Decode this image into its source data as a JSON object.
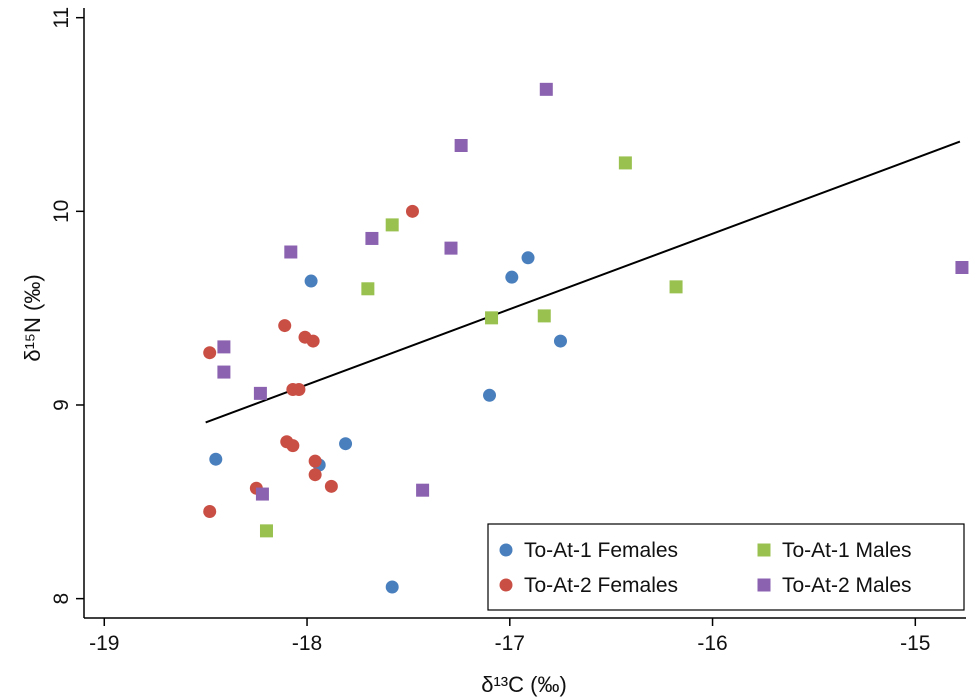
{
  "chart_data": {
    "type": "scatter",
    "title": "",
    "xlabel": "δ¹³C (‰)",
    "ylabel": "δ¹⁵N (‰)",
    "xlim": [
      -19.1,
      -14.75
    ],
    "ylim": [
      7.9,
      11.05
    ],
    "xticks": [
      -19,
      -18,
      -17,
      -16,
      -15
    ],
    "yticks": [
      8,
      9,
      10,
      11
    ],
    "grid": false,
    "legend_position": "bottom-right",
    "series": [
      {
        "name": "To-At-1 Females",
        "marker": "circle",
        "color": "#4a7fbd",
        "points": [
          {
            "x": -18.45,
            "y": 8.72
          },
          {
            "x": -17.98,
            "y": 9.64
          },
          {
            "x": -17.94,
            "y": 8.69
          },
          {
            "x": -17.81,
            "y": 8.8
          },
          {
            "x": -17.58,
            "y": 8.06
          },
          {
            "x": -17.1,
            "y": 9.05
          },
          {
            "x": -16.99,
            "y": 9.66
          },
          {
            "x": -16.91,
            "y": 9.76
          },
          {
            "x": -16.75,
            "y": 9.33
          }
        ]
      },
      {
        "name": "To-At-2 Females",
        "marker": "circle",
        "color": "#c94f45",
        "points": [
          {
            "x": -18.48,
            "y": 9.27
          },
          {
            "x": -18.48,
            "y": 8.45
          },
          {
            "x": -18.25,
            "y": 8.57
          },
          {
            "x": -18.11,
            "y": 9.41
          },
          {
            "x": -18.1,
            "y": 8.81
          },
          {
            "x": -18.07,
            "y": 9.08
          },
          {
            "x": -18.07,
            "y": 8.79
          },
          {
            "x": -18.04,
            "y": 9.08
          },
          {
            "x": -18.01,
            "y": 9.35
          },
          {
            "x": -17.97,
            "y": 9.33
          },
          {
            "x": -17.96,
            "y": 8.71
          },
          {
            "x": -17.96,
            "y": 8.64
          },
          {
            "x": -17.88,
            "y": 8.58
          },
          {
            "x": -17.48,
            "y": 10.0
          }
        ]
      },
      {
        "name": "To-At-1 Males",
        "marker": "square",
        "color": "#99c14f",
        "points": [
          {
            "x": -18.2,
            "y": 8.35
          },
          {
            "x": -17.7,
            "y": 9.6
          },
          {
            "x": -17.58,
            "y": 9.93
          },
          {
            "x": -17.09,
            "y": 9.45
          },
          {
            "x": -16.83,
            "y": 9.46
          },
          {
            "x": -16.43,
            "y": 10.25
          },
          {
            "x": -16.18,
            "y": 9.61
          }
        ]
      },
      {
        "name": "To-At-2 Males",
        "marker": "square",
        "color": "#8a62b0",
        "points": [
          {
            "x": -18.41,
            "y": 9.3
          },
          {
            "x": -18.41,
            "y": 9.17
          },
          {
            "x": -18.23,
            "y": 9.06
          },
          {
            "x": -18.22,
            "y": 8.54
          },
          {
            "x": -18.08,
            "y": 9.79
          },
          {
            "x": -17.68,
            "y": 9.86
          },
          {
            "x": -17.43,
            "y": 8.56
          },
          {
            "x": -17.29,
            "y": 9.81
          },
          {
            "x": -17.24,
            "y": 10.34
          },
          {
            "x": -16.82,
            "y": 10.63
          },
          {
            "x": -14.77,
            "y": 9.71
          }
        ]
      }
    ],
    "trendline": {
      "type": "linear-fit",
      "color": "#000000",
      "from": {
        "x": -18.5,
        "y": 8.91
      },
      "to": {
        "x": -14.78,
        "y": 10.36
      }
    }
  }
}
